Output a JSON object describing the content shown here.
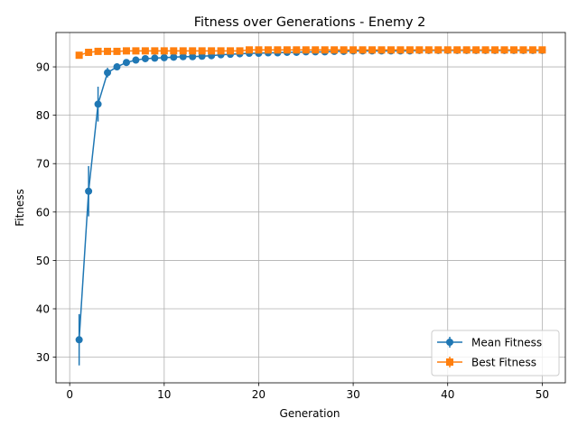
{
  "chart_data": {
    "type": "line",
    "title": "Fitness over Generations - Enemy 2",
    "xlabel": "Generation",
    "ylabel": "Fitness",
    "xlim": [
      -1.45,
      52.45
    ],
    "ylim": [
      24.7,
      97.1
    ],
    "xticks": [
      0,
      10,
      20,
      30,
      40,
      50
    ],
    "yticks": [
      30,
      40,
      50,
      60,
      70,
      80,
      90
    ],
    "grid": true,
    "legend_position": "lower-right",
    "x": [
      1,
      2,
      3,
      4,
      5,
      6,
      7,
      8,
      9,
      10,
      11,
      12,
      13,
      14,
      15,
      16,
      17,
      18,
      19,
      20,
      21,
      22,
      23,
      24,
      25,
      26,
      27,
      28,
      29,
      30,
      31,
      32,
      33,
      34,
      35,
      36,
      37,
      38,
      39,
      40,
      41,
      42,
      43,
      44,
      45,
      46,
      47,
      48,
      49,
      50
    ],
    "series": [
      {
        "name": "Mean Fitness",
        "color": "#1f77b4",
        "marker": "circle",
        "values": [
          33.6,
          64.3,
          82.3,
          88.8,
          90.0,
          90.9,
          91.4,
          91.7,
          91.8,
          91.9,
          92.0,
          92.1,
          92.1,
          92.2,
          92.3,
          92.5,
          92.6,
          92.7,
          92.8,
          92.8,
          92.9,
          92.9,
          93.0,
          93.0,
          93.1,
          93.1,
          93.1,
          93.2,
          93.2,
          93.3,
          93.3,
          93.3,
          93.3,
          93.3,
          93.3,
          93.3,
          93.4,
          93.4,
          93.4,
          93.4,
          93.4,
          93.4,
          93.4,
          93.4,
          93.4,
          93.4,
          93.4,
          93.4,
          93.4,
          93.4
        ],
        "errors": [
          5.3,
          5.2,
          3.6,
          1.0,
          0.7,
          0.5,
          0.4,
          0.4,
          0.3,
          0.3,
          0.3,
          0.3,
          0.3,
          0.3,
          0.3,
          0.3,
          0.2,
          0.2,
          0.2,
          0.2,
          0.2,
          0.2,
          0.2,
          0.2,
          0.2,
          0.2,
          0.2,
          0.2,
          0.2,
          0.2,
          0.2,
          0.2,
          0.2,
          0.2,
          0.2,
          0.2,
          0.2,
          0.2,
          0.2,
          0.2,
          0.2,
          0.2,
          0.2,
          0.2,
          0.2,
          0.2,
          0.2,
          0.2,
          0.2,
          0.2
        ]
      },
      {
        "name": "Best Fitness",
        "color": "#ff7f0e",
        "marker": "square",
        "values": [
          92.4,
          93.0,
          93.2,
          93.2,
          93.2,
          93.3,
          93.3,
          93.3,
          93.3,
          93.3,
          93.3,
          93.3,
          93.3,
          93.3,
          93.3,
          93.3,
          93.3,
          93.3,
          93.5,
          93.5,
          93.5,
          93.5,
          93.5,
          93.5,
          93.5,
          93.5,
          93.5,
          93.5,
          93.5,
          93.5,
          93.5,
          93.5,
          93.5,
          93.5,
          93.5,
          93.5,
          93.5,
          93.5,
          93.5,
          93.5,
          93.5,
          93.5,
          93.5,
          93.5,
          93.5,
          93.5,
          93.5,
          93.5,
          93.5,
          93.5
        ],
        "errors": [
          0.3,
          0.2,
          0.2,
          0.2,
          0.2,
          0.2,
          0.2,
          0.2,
          0.2,
          0.2,
          0.2,
          0.2,
          0.2,
          0.2,
          0.2,
          0.2,
          0.2,
          0.2,
          0.2,
          0.2,
          0.2,
          0.2,
          0.2,
          0.2,
          0.2,
          0.2,
          0.2,
          0.2,
          0.2,
          0.2,
          0.2,
          0.2,
          0.2,
          0.2,
          0.2,
          0.2,
          0.2,
          0.2,
          0.2,
          0.2,
          0.2,
          0.2,
          0.2,
          0.2,
          0.2,
          0.2,
          0.2,
          0.2,
          0.2,
          0.2
        ]
      }
    ]
  }
}
